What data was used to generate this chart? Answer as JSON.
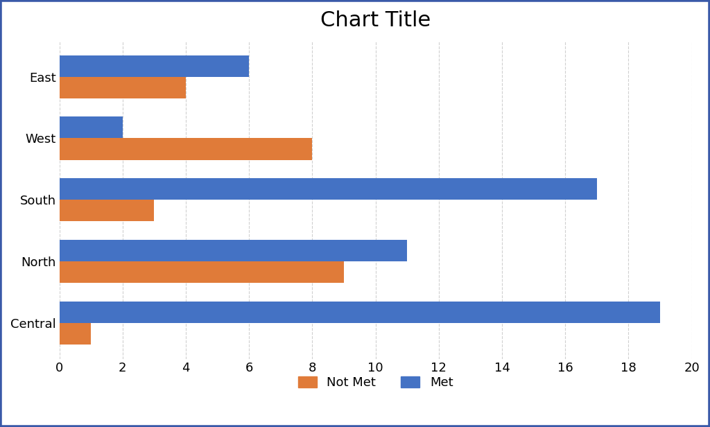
{
  "title": "Chart Title",
  "categories": [
    "Central",
    "North",
    "South",
    "West",
    "East"
  ],
  "not_met": [
    1,
    9,
    3,
    8,
    4
  ],
  "met": [
    19,
    11,
    17,
    2,
    6
  ],
  "not_met_color": "#E07B39",
  "met_color": "#4472C4",
  "xlim": [
    0,
    20
  ],
  "xticks": [
    0,
    2,
    4,
    6,
    8,
    10,
    12,
    14,
    16,
    18,
    20
  ],
  "title_fontsize": 22,
  "tick_fontsize": 13,
  "label_fontsize": 13,
  "legend_fontsize": 13,
  "bar_height": 0.35,
  "background_color": "#ffffff",
  "grid_color": "#d0d0d0",
  "border_color": "#3959a8"
}
